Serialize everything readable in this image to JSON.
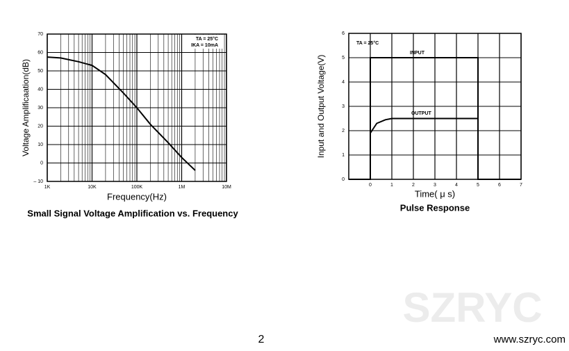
{
  "chart_data": [
    {
      "type": "line",
      "title": "Small Signal Voltage Amplification vs. Frequency",
      "x_label": "Frequency(Hz)",
      "y_label": "Voltage Amplificaation(dB)",
      "annotations": [
        "TA = 25°C",
        "IKA = 10mA"
      ],
      "x": [
        1000,
        2000,
        5000,
        10000,
        20000,
        50000,
        100000,
        200000,
        500000,
        1000000,
        2000000
      ],
      "values": [
        57.5,
        57,
        55,
        53,
        48,
        38,
        30,
        21,
        11,
        3,
        -4
      ],
      "color": "#000000",
      "xlog": true,
      "grid": true,
      "minor_grid": true,
      "xlim": [
        1000,
        10000000
      ],
      "xticks": [
        {
          "value": 1000,
          "label": "1K"
        },
        {
          "value": 10000,
          "label": "10K"
        },
        {
          "value": 100000,
          "label": "100K"
        },
        {
          "value": 1000000,
          "label": "1M"
        },
        {
          "value": 10000000,
          "label": "10M"
        }
      ],
      "ylim": [
        -10,
        70
      ],
      "yticks": [
        {
          "value": -10,
          "label": "– 10"
        },
        0,
        10,
        20,
        30,
        40,
        50,
        60,
        70
      ]
    },
    {
      "type": "line",
      "title": "Pulse Response",
      "x_label": "Time( μ s)",
      "y_label": "Input and Output Voltage(V)",
      "annotations": [
        "TA = 25°C"
      ],
      "series": [
        {
          "name": "INPUT",
          "color": "#000000",
          "x": [
            -1,
            0,
            0,
            5,
            5,
            7
          ],
          "values": [
            0,
            0,
            5,
            5,
            0,
            0
          ]
        },
        {
          "name": "OUTPUT",
          "color": "#000000",
          "x": [
            -1,
            0,
            0,
            0.3,
            0.7,
            1,
            5,
            5,
            7
          ],
          "values": [
            0,
            0,
            1.9,
            2.3,
            2.45,
            2.5,
            2.5,
            0,
            0
          ]
        }
      ],
      "grid": true,
      "xlim": [
        -1,
        7
      ],
      "xticks": [
        0,
        1,
        2,
        3,
        4,
        5,
        6,
        7
      ],
      "ylim": [
        0,
        6
      ],
      "yticks": [
        0,
        1,
        2,
        3,
        4,
        5,
        6
      ]
    }
  ],
  "page_number": "2",
  "website": "www.szryc.com",
  "watermark": "SZRYC"
}
